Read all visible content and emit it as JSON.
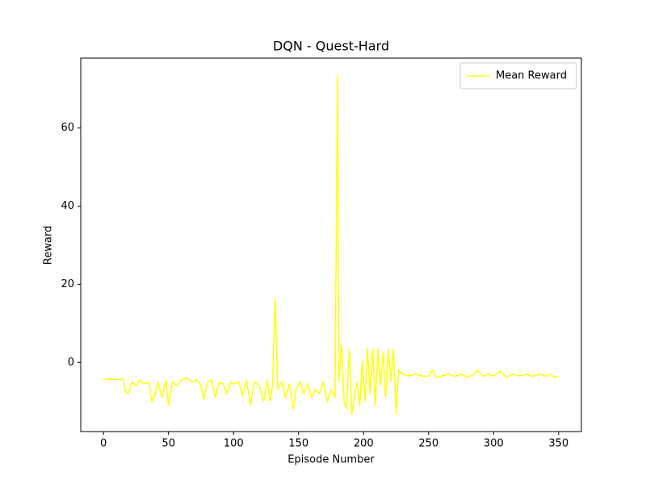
{
  "chart_data": {
    "type": "line",
    "title": "DQN - Quest-Hard",
    "x_label": "Episode Number",
    "y_label": "Reward",
    "x": [
      0,
      5,
      10,
      15,
      17,
      19,
      22,
      25,
      28,
      31,
      35,
      37,
      39,
      42,
      45,
      48,
      50,
      53,
      56,
      60,
      64,
      68,
      72,
      75,
      77,
      80,
      83,
      86,
      89,
      92,
      95,
      98,
      100,
      104,
      107,
      110,
      113,
      116,
      120,
      123,
      126,
      128,
      130,
      132,
      134,
      137,
      140,
      143,
      146,
      148,
      151,
      154,
      157,
      160,
      163,
      166,
      169,
      172,
      175,
      178,
      180,
      181,
      183,
      185,
      187,
      189,
      191,
      193,
      195,
      197,
      199,
      201,
      203,
      205,
      207,
      209,
      211,
      213,
      215,
      217,
      219,
      221,
      223,
      225,
      227,
      230,
      235,
      240,
      245,
      250,
      253,
      256,
      260,
      265,
      270,
      275,
      280,
      285,
      288,
      292,
      296,
      300,
      305,
      310,
      315,
      320,
      325,
      330,
      335,
      340,
      343,
      346,
      350
    ],
    "series": [
      {
        "name": "Mean Reward",
        "color": "#ffff00",
        "values": [
          -4.2,
          -4.3,
          -4.4,
          -4.2,
          -7.5,
          -8,
          -5,
          -6,
          -4.5,
          -5.5,
          -5,
          -10,
          -9,
          -5,
          -9,
          -4.5,
          -11,
          -5,
          -6,
          -4.5,
          -4,
          -5,
          -4.5,
          -6,
          -9.5,
          -5,
          -4.5,
          -9,
          -5,
          -5.5,
          -8,
          -5,
          -5.5,
          -5,
          -8.5,
          -4.5,
          -11,
          -5,
          -6,
          -10,
          -4.5,
          -10,
          -6,
          16.2,
          -7,
          -5,
          -9,
          -5.5,
          -12,
          -7,
          -5,
          -8,
          -5.5,
          -9,
          -7,
          -8,
          -5,
          -10,
          -7,
          -9,
          73.5,
          -5,
          4.5,
          -10,
          -12,
          3.5,
          -13.3,
          -9,
          -5,
          -11,
          0.5,
          -10,
          3.5,
          -8,
          3.5,
          -11,
          3.5,
          -6,
          2.5,
          -9,
          3.5,
          -5,
          3.3,
          -13.3,
          -2,
          -3,
          -3.5,
          -3,
          -3.5,
          -3.5,
          -2,
          -3.8,
          -3.5,
          -3,
          -3.6,
          -3,
          -3.8,
          -3,
          -2,
          -3.6,
          -3,
          -3.5,
          -2.2,
          -3.7,
          -3,
          -3.5,
          -3,
          -3.6,
          -3,
          -3.5,
          -3,
          -3.6,
          -3.7
        ]
      }
    ],
    "xlim": [
      -17.5,
      367.5
    ],
    "ylim": [
      -17.7,
      77.9
    ],
    "xticks": [
      0,
      50,
      100,
      150,
      200,
      250,
      300,
      350
    ],
    "yticks": [
      0,
      20,
      40,
      60
    ],
    "legend": "upper right"
  }
}
